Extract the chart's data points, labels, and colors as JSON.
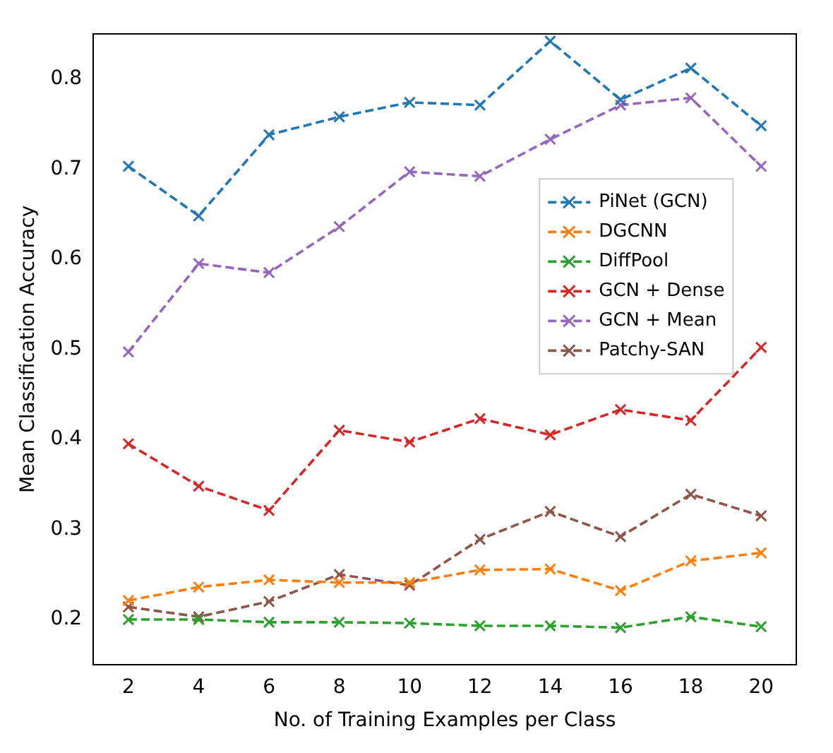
{
  "chart_data": {
    "type": "line",
    "xlabel": "No. of Training Examples per Class",
    "ylabel": "Mean Classification Accuracy",
    "x": [
      2,
      4,
      6,
      8,
      10,
      12,
      14,
      16,
      18,
      20
    ],
    "xlim": [
      1,
      21
    ],
    "xticks": [
      2,
      4,
      6,
      8,
      10,
      12,
      14,
      16,
      18,
      20
    ],
    "ylim": [
      0.15,
      0.85
    ],
    "yticks": [
      0.2,
      0.3,
      0.4,
      0.5,
      0.6,
      0.7,
      0.8
    ],
    "grid": false,
    "legend": "right",
    "marker": "cross",
    "line_style": "dashed",
    "series": [
      {
        "name": "PiNet (GCN)",
        "color": "#1f77b4",
        "values": [
          0.703,
          0.648,
          0.738,
          0.758,
          0.774,
          0.771,
          0.842,
          0.777,
          0.812,
          0.748
        ]
      },
      {
        "name": "DGCNN",
        "color": "#ff7f0e",
        "values": [
          0.221,
          0.236,
          0.244,
          0.241,
          0.241,
          0.255,
          0.256,
          0.232,
          0.265,
          0.274
        ]
      },
      {
        "name": "DiffPool",
        "color": "#2ca02c",
        "values": [
          0.2,
          0.2,
          0.197,
          0.197,
          0.196,
          0.193,
          0.193,
          0.191,
          0.203,
          0.192
        ]
      },
      {
        "name": "GCN + Dense",
        "color": "#d62728",
        "values": [
          0.395,
          0.348,
          0.321,
          0.41,
          0.397,
          0.423,
          0.405,
          0.433,
          0.421,
          0.502
        ]
      },
      {
        "name": "GCN + Mean",
        "color": "#9467bd",
        "values": [
          0.497,
          0.595,
          0.585,
          0.636,
          0.697,
          0.692,
          0.733,
          0.771,
          0.779,
          0.703
        ]
      },
      {
        "name": "Patchy-SAN",
        "color": "#8c564b",
        "values": [
          0.214,
          0.203,
          0.22,
          0.25,
          0.238,
          0.289,
          0.32,
          0.292,
          0.339,
          0.315
        ]
      }
    ]
  }
}
